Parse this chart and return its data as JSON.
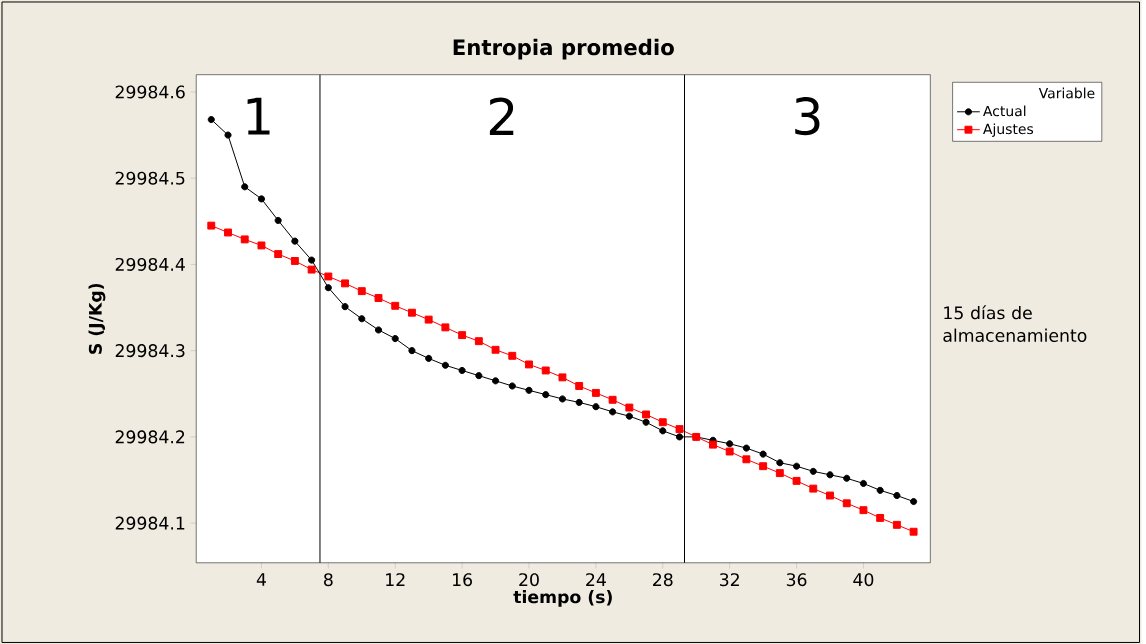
{
  "chart_data": {
    "type": "line",
    "title": "Entropia promedio",
    "xlabel": "tiempo (s)",
    "ylabel": "S (J/Kg)",
    "legend_title": "Variable",
    "legend": "right",
    "x": [
      1,
      2,
      3,
      4,
      5,
      6,
      7,
      8,
      9,
      10,
      11,
      12,
      13,
      14,
      15,
      16,
      17,
      18,
      19,
      20,
      21,
      22,
      23,
      24,
      25,
      26,
      27,
      28,
      29,
      30,
      31,
      32,
      33,
      34,
      35,
      36,
      37,
      38,
      39,
      40,
      41,
      42,
      43
    ],
    "series": [
      {
        "name": "Actual",
        "color": "#000000",
        "marker": "circle",
        "values": [
          29984.568,
          29984.55,
          29984.49,
          29984.476,
          29984.451,
          29984.427,
          29984.405,
          29984.373,
          29984.351,
          29984.337,
          29984.324,
          29984.314,
          29984.3,
          29984.291,
          29984.283,
          29984.277,
          29984.271,
          29984.265,
          29984.259,
          29984.254,
          29984.249,
          29984.244,
          29984.24,
          29984.235,
          29984.229,
          29984.224,
          29984.217,
          29984.207,
          29984.2,
          29984.2,
          29984.196,
          29984.192,
          29984.187,
          29984.18,
          29984.17,
          29984.166,
          29984.16,
          29984.156,
          29984.152,
          29984.146,
          29984.138,
          29984.132,
          29984.125
        ]
      },
      {
        "name": "Ajustes",
        "color": "#ff0000",
        "marker": "square",
        "values": [
          29984.445,
          29984.437,
          29984.429,
          29984.422,
          29984.412,
          29984.404,
          29984.394,
          29984.386,
          29984.378,
          29984.369,
          29984.361,
          29984.352,
          29984.344,
          29984.336,
          29984.327,
          29984.318,
          29984.311,
          29984.301,
          29984.294,
          29984.284,
          29984.277,
          29984.269,
          29984.259,
          29984.251,
          29984.243,
          29984.234,
          29984.226,
          29984.217,
          29984.209,
          29984.2,
          29984.191,
          29984.183,
          29984.174,
          29984.166,
          29984.158,
          29984.149,
          29984.14,
          29984.132,
          29984.123,
          29984.115,
          29984.106,
          29984.098,
          29984.09
        ]
      }
    ],
    "xlim": [
      0.1,
      44.0
    ],
    "ylim": [
      29984.054,
      29984.62
    ],
    "xticks": [
      4,
      8,
      12,
      16,
      20,
      24,
      28,
      32,
      36,
      40
    ],
    "yticks": [
      29984.1,
      29984.2,
      29984.3,
      29984.4,
      29984.5,
      29984.6
    ],
    "ref_lines": [
      {
        "axis": "x",
        "value": 7.5
      },
      {
        "axis": "x",
        "value": 29.3
      }
    ],
    "annotations": [
      "1",
      "2",
      "3",
      "15 días de almacenamiento"
    ]
  }
}
